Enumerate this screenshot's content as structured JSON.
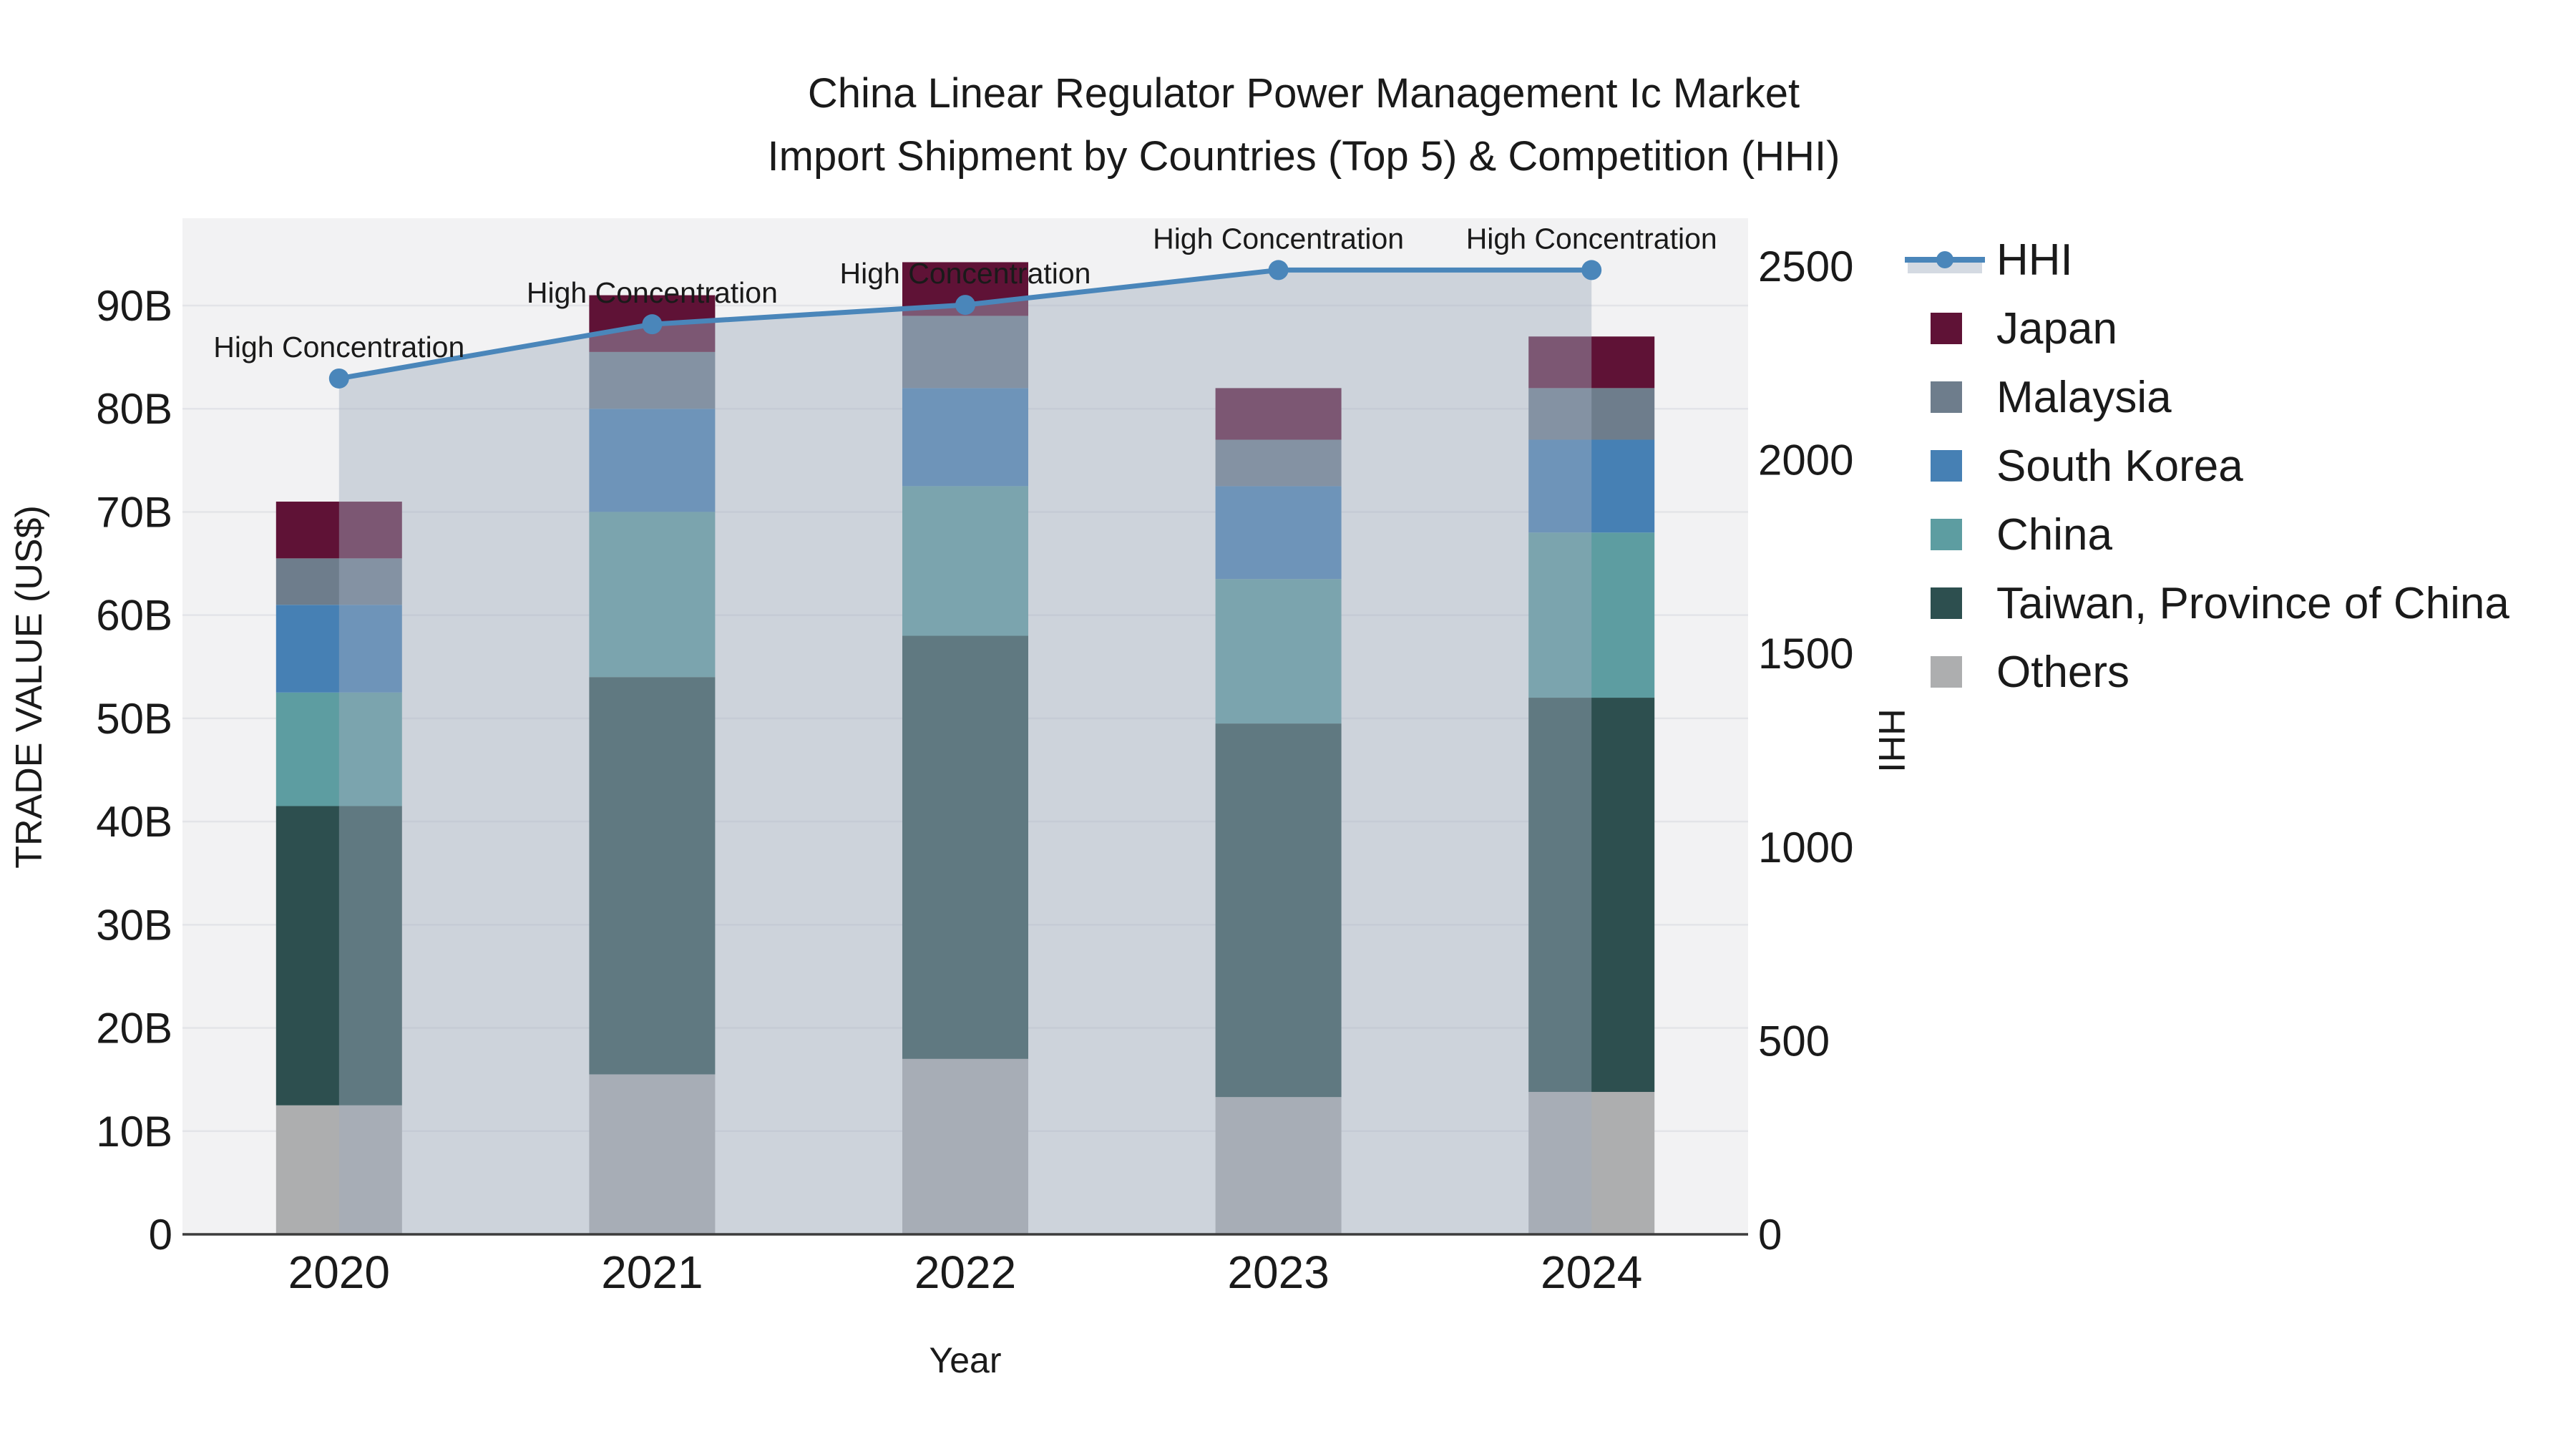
{
  "title": {
    "line1": "China Linear Regulator Power Management Ic Market",
    "line2": "Import Shipment by Countries (Top 5) & Competition (HHI)"
  },
  "colors": {
    "background": "#ffffff",
    "plot_background": "#f2f2f3",
    "gridline": "#e3e4e8",
    "axis_line": "#3c3c3c",
    "text": "#1a1a1a",
    "hhi_line": "#4a86ba",
    "hhi_area_fill": "rgba(160,172,190,0.45)"
  },
  "chart_data": {
    "type": "bar",
    "subtype": "stacked-bars-with-line-overlay",
    "categories": [
      "2020",
      "2021",
      "2022",
      "2023",
      "2024"
    ],
    "xlabel": "Year",
    "series": [
      {
        "name": "Others",
        "color": "#adaeaf",
        "values": [
          12.5,
          15.5,
          17.0,
          13.3,
          13.8
        ]
      },
      {
        "name": "Taiwan, Province of China",
        "color": "#2d4f4f",
        "values": [
          29.0,
          38.5,
          41.0,
          36.2,
          38.2
        ]
      },
      {
        "name": "China",
        "color": "#5d9da1",
        "values": [
          11.0,
          16.0,
          14.5,
          14.0,
          16.0
        ]
      },
      {
        "name": "South Korea",
        "color": "#4680b4",
        "values": [
          8.5,
          10.0,
          9.5,
          9.0,
          9.0
        ]
      },
      {
        "name": "Malaysia",
        "color": "#6e7d8c",
        "values": [
          4.5,
          5.5,
          7.0,
          4.5,
          5.0
        ]
      },
      {
        "name": "Japan",
        "color": "#5f1236",
        "values": [
          5.5,
          5.5,
          5.2,
          5.0,
          5.0
        ]
      }
    ],
    "line_series": {
      "name": "HHI",
      "color": "#4a86ba",
      "values": [
        2210,
        2350,
        2400,
        2490,
        2490
      ],
      "area_fill": "rgba(160,172,190,0.45)",
      "point_annotations": [
        "High Concentration",
        "High Concentration",
        "High Concentration",
        "High Concentration",
        "High Concentration"
      ]
    },
    "left_axis": {
      "label": "TRADE VALUE (US$)",
      "tick_values": [
        0,
        10,
        20,
        30,
        40,
        50,
        60,
        70,
        80,
        90
      ],
      "tick_labels": [
        "0",
        "10B",
        "20B",
        "30B",
        "40B",
        "50B",
        "60B",
        "70B",
        "80B",
        "90B"
      ],
      "range": [
        0,
        98.4
      ],
      "grid": true
    },
    "right_axis": {
      "label": "HHI",
      "tick_values": [
        0,
        500,
        1000,
        1500,
        2000,
        2500
      ],
      "tick_labels": [
        "0",
        "500",
        "1000",
        "1500",
        "2000",
        "2500"
      ],
      "range": [
        0,
        2501
      ],
      "grid": false
    },
    "legend": {
      "position": "right",
      "entries": [
        {
          "label": "HHI",
          "swatch": "line-marker-band"
        },
        {
          "label": "Japan",
          "swatch": "patch",
          "color": "#5f1236"
        },
        {
          "label": "Malaysia",
          "swatch": "patch",
          "color": "#6e7d8c"
        },
        {
          "label": "South Korea",
          "swatch": "patch",
          "color": "#4680b4"
        },
        {
          "label": "China",
          "swatch": "patch",
          "color": "#5d9da1"
        },
        {
          "label": "Taiwan, Province of China",
          "swatch": "patch",
          "color": "#2d4f4f"
        },
        {
          "label": "Others",
          "swatch": "patch",
          "color": "#adaeaf"
        }
      ]
    }
  }
}
